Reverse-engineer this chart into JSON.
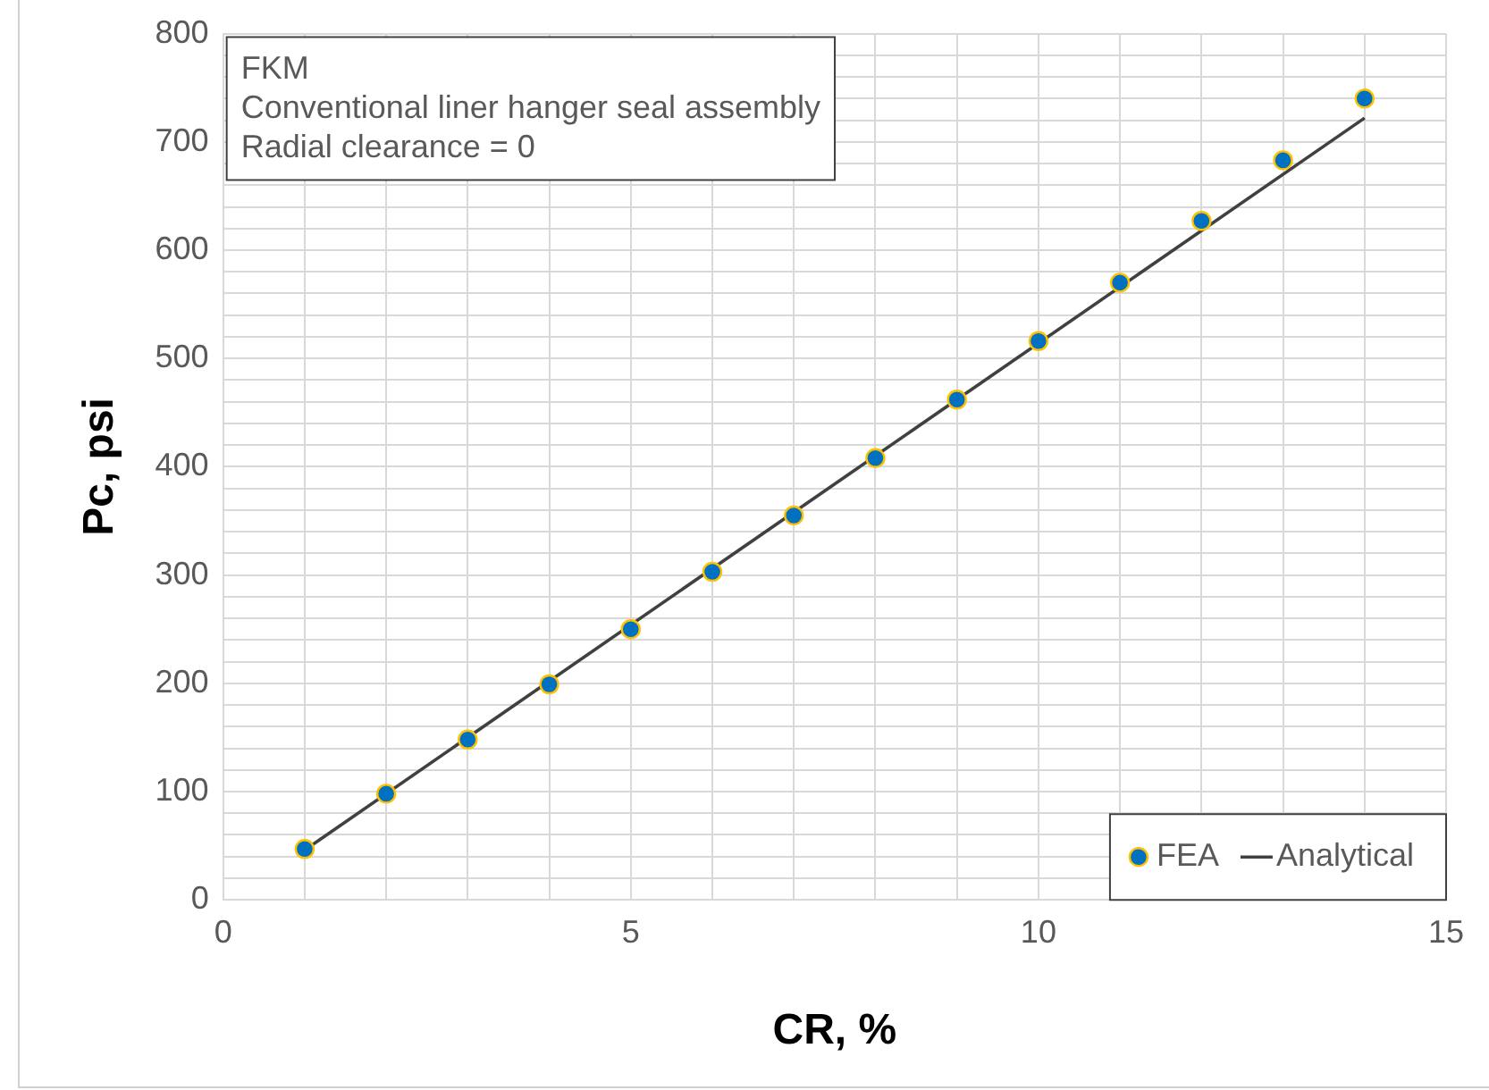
{
  "chart_data": {
    "type": "scatter",
    "xlabel": "CR, %",
    "ylabel": "Pc, psi",
    "annotations": [
      "FKM",
      "Conventional liner hanger seal assembly",
      "Radial clearance = 0"
    ],
    "xlim": [
      0,
      15
    ],
    "xticks": [
      0,
      {
        "value": 1,
        "label": null
      },
      {
        "value": 2,
        "label": null
      },
      {
        "value": 3,
        "label": null
      },
      {
        "value": 4,
        "label": null
      },
      5,
      {
        "value": 6,
        "label": null
      },
      {
        "value": 7,
        "label": null
      },
      {
        "value": 8,
        "label": null
      },
      {
        "value": 9,
        "label": null
      },
      10,
      {
        "value": 11,
        "label": null
      },
      {
        "value": 12,
        "label": null
      },
      {
        "value": 13,
        "label": null
      },
      {
        "value": 14,
        "label": null
      },
      15
    ],
    "ylim": [
      0,
      800
    ],
    "yticks": [
      0,
      {
        "value": 20,
        "label": null
      },
      {
        "value": 40,
        "label": null
      },
      {
        "value": 60,
        "label": null
      },
      {
        "value": 80,
        "label": null
      },
      100,
      {
        "value": 120,
        "label": null
      },
      {
        "value": 140,
        "label": null
      },
      {
        "value": 160,
        "label": null
      },
      {
        "value": 180,
        "label": null
      },
      200,
      {
        "value": 220,
        "label": null
      },
      {
        "value": 240,
        "label": null
      },
      {
        "value": 260,
        "label": null
      },
      {
        "value": 280,
        "label": null
      },
      300,
      {
        "value": 320,
        "label": null
      },
      {
        "value": 340,
        "label": null
      },
      {
        "value": 360,
        "label": null
      },
      {
        "value": 380,
        "label": null
      },
      400,
      {
        "value": 420,
        "label": null
      },
      {
        "value": 440,
        "label": null
      },
      {
        "value": 460,
        "label": null
      },
      {
        "value": 480,
        "label": null
      },
      500,
      {
        "value": 520,
        "label": null
      },
      {
        "value": 540,
        "label": null
      },
      {
        "value": 560,
        "label": null
      },
      {
        "value": 580,
        "label": null
      },
      600,
      {
        "value": 620,
        "label": null
      },
      {
        "value": 640,
        "label": null
      },
      {
        "value": 660,
        "label": null
      },
      {
        "value": 680,
        "label": null
      },
      700,
      {
        "value": 720,
        "label": null
      },
      {
        "value": 740,
        "label": null
      },
      {
        "value": 760,
        "label": null
      },
      {
        "value": 780,
        "label": null
      },
      800
    ],
    "grid": true,
    "legend": "bottom right",
    "series": [
      {
        "name": "FEA",
        "marker": "circle",
        "color": "#0070c0",
        "x": [
          1,
          2,
          3,
          4,
          5,
          6,
          7,
          8,
          9,
          10,
          11,
          12,
          13,
          14
        ],
        "values": [
          47,
          98,
          148,
          199,
          250,
          303,
          355,
          408,
          462,
          516,
          570,
          627,
          683,
          740
        ]
      },
      {
        "name": "Analytical",
        "type": "line",
        "marker": "none",
        "color": "#404040",
        "x": [
          1,
          14
        ],
        "values": [
          46,
          722
        ]
      }
    ]
  }
}
